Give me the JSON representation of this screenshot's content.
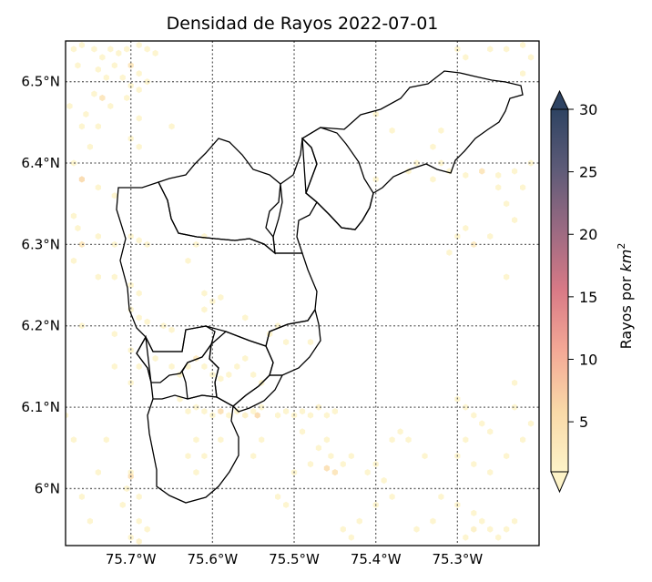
{
  "chart_data": {
    "type": "heatmap",
    "title": "Densidad de Rayos 2022-07-01",
    "xlim": [
      -75.78,
      -75.2
    ],
    "ylim": [
      5.93,
      6.55
    ],
    "x_ticks": [
      {
        "value": -75.7,
        "label": "75.7°W"
      },
      {
        "value": -75.6,
        "label": "75.6°W"
      },
      {
        "value": -75.5,
        "label": "75.5°W"
      },
      {
        "value": -75.4,
        "label": "75.4°W"
      },
      {
        "value": -75.3,
        "label": "75.3°W"
      }
    ],
    "y_ticks": [
      {
        "value": 6.0,
        "label": "6°N"
      },
      {
        "value": 6.1,
        "label": "6.1°N"
      },
      {
        "value": 6.2,
        "label": "6.2°N"
      },
      {
        "value": 6.3,
        "label": "6.3°N"
      },
      {
        "value": 6.4,
        "label": "6.4°N"
      },
      {
        "value": 6.5,
        "label": "6.5°N"
      }
    ],
    "grid": true,
    "colorbar": {
      "label_prefix": "Rayos por ",
      "label_math": "km",
      "label_sup": "2",
      "min": 1,
      "max": 30,
      "ticks": [
        5,
        10,
        15,
        20,
        25,
        30
      ],
      "tick_labels": [
        "5",
        "10",
        "15",
        "20",
        "25",
        "30"
      ],
      "extend": "both",
      "colors": [
        "#fdf3c8",
        "#f9d9a8",
        "#f4a996",
        "#d97a86",
        "#9b6a82",
        "#5e5b78",
        "#2e4362"
      ]
    },
    "cells": [
      [
        -75.77,
        6.54,
        1
      ],
      [
        -75.76,
        6.545,
        1
      ],
      [
        -75.745,
        6.54,
        1
      ],
      [
        -75.735,
        6.53,
        1
      ],
      [
        -75.725,
        6.54,
        1
      ],
      [
        -75.715,
        6.535,
        1
      ],
      [
        -75.705,
        6.54,
        1
      ],
      [
        -75.69,
        6.545,
        1
      ],
      [
        -75.68,
        6.54,
        1
      ],
      [
        -75.67,
        6.535,
        1
      ],
      [
        -75.765,
        6.52,
        1
      ],
      [
        -75.74,
        6.515,
        1
      ],
      [
        -75.72,
        6.52,
        1
      ],
      [
        -75.7,
        6.52,
        4
      ],
      [
        -75.69,
        6.51,
        1
      ],
      [
        -75.71,
        6.505,
        1
      ],
      [
        -75.73,
        6.505,
        1
      ],
      [
        -75.7,
        6.495,
        1
      ],
      [
        -75.69,
        6.49,
        1
      ],
      [
        -75.68,
        6.5,
        1
      ],
      [
        -75.735,
        6.48,
        4
      ],
      [
        -75.745,
        6.485,
        1
      ],
      [
        -75.725,
        6.47,
        1
      ],
      [
        -75.705,
        6.48,
        1
      ],
      [
        -75.775,
        6.47,
        1
      ],
      [
        -75.755,
        6.46,
        1
      ],
      [
        -75.76,
        6.445,
        1
      ],
      [
        -75.74,
        6.445,
        1
      ],
      [
        -75.69,
        6.455,
        1
      ],
      [
        -75.65,
        6.445,
        1
      ],
      [
        -75.7,
        6.43,
        1
      ],
      [
        -75.69,
        6.42,
        1
      ],
      [
        -75.75,
        6.42,
        1
      ],
      [
        -75.77,
        6.4,
        1
      ],
      [
        -75.76,
        6.38,
        6
      ],
      [
        -75.74,
        6.37,
        1
      ],
      [
        -75.72,
        6.36,
        1
      ],
      [
        -75.77,
        6.335,
        1
      ],
      [
        -75.765,
        6.32,
        1
      ],
      [
        -75.76,
        6.3,
        4
      ],
      [
        -75.74,
        6.31,
        1
      ],
      [
        -75.72,
        6.3,
        1
      ],
      [
        -75.7,
        6.31,
        1
      ],
      [
        -75.69,
        6.305,
        1
      ],
      [
        -75.68,
        6.3,
        1
      ],
      [
        -75.77,
        6.28,
        1
      ],
      [
        -75.74,
        6.26,
        1
      ],
      [
        -75.72,
        6.26,
        1
      ],
      [
        -75.7,
        6.25,
        1
      ],
      [
        -75.69,
        6.24,
        1
      ],
      [
        -75.7,
        6.22,
        1
      ],
      [
        -75.69,
        6.21,
        1
      ],
      [
        -75.68,
        6.205,
        1
      ],
      [
        -75.66,
        6.2,
        1
      ],
      [
        -75.65,
        6.195,
        1
      ],
      [
        -75.72,
        6.19,
        1
      ],
      [
        -75.76,
        6.2,
        1
      ],
      [
        -75.7,
        6.17,
        1
      ],
      [
        -75.69,
        6.15,
        1
      ],
      [
        -75.67,
        6.16,
        1
      ],
      [
        -75.65,
        6.15,
        1
      ],
      [
        -75.64,
        6.14,
        1
      ],
      [
        -75.63,
        6.15,
        1
      ],
      [
        -75.62,
        6.16,
        3
      ],
      [
        -75.61,
        6.15,
        1
      ],
      [
        -75.6,
        6.14,
        1
      ],
      [
        -75.59,
        6.135,
        1
      ],
      [
        -75.58,
        6.14,
        1
      ],
      [
        -75.57,
        6.15,
        1
      ],
      [
        -75.56,
        6.16,
        1
      ],
      [
        -75.55,
        6.14,
        1
      ],
      [
        -75.54,
        6.13,
        1
      ],
      [
        -75.72,
        6.15,
        1
      ],
      [
        -75.7,
        6.13,
        1
      ],
      [
        -75.64,
        6.11,
        1
      ],
      [
        -75.63,
        6.095,
        1
      ],
      [
        -75.62,
        6.1,
        1
      ],
      [
        -75.61,
        6.095,
        1
      ],
      [
        -75.6,
        6.09,
        1
      ],
      [
        -75.59,
        6.095,
        5
      ],
      [
        -75.58,
        6.09,
        1
      ],
      [
        -75.57,
        6.095,
        1
      ],
      [
        -75.56,
        6.09,
        2
      ],
      [
        -75.55,
        6.095,
        1
      ],
      [
        -75.545,
        6.09,
        6
      ],
      [
        -75.54,
        6.1,
        1
      ],
      [
        -75.52,
        6.09,
        1
      ],
      [
        -75.51,
        6.095,
        1
      ],
      [
        -75.5,
        6.09,
        1
      ],
      [
        -75.49,
        6.095,
        1
      ],
      [
        -75.48,
        6.09,
        1
      ],
      [
        -75.47,
        6.1,
        2
      ],
      [
        -75.46,
        6.09,
        1
      ],
      [
        -75.45,
        6.095,
        1
      ],
      [
        -75.46,
        6.06,
        1
      ],
      [
        -75.455,
        6.04,
        1
      ],
      [
        -75.46,
        6.025,
        5
      ],
      [
        -75.45,
        6.02,
        4
      ],
      [
        -75.44,
        6.03,
        1
      ],
      [
        -75.43,
        6.04,
        1
      ],
      [
        -75.41,
        6.02,
        1
      ],
      [
        -75.4,
        6.03,
        1
      ],
      [
        -75.39,
        6.01,
        1
      ],
      [
        -75.38,
        5.99,
        1
      ],
      [
        -75.4,
        5.98,
        1
      ],
      [
        -75.62,
        6.06,
        1
      ],
      [
        -75.63,
        6.04,
        1
      ],
      [
        -75.62,
        6.02,
        1
      ],
      [
        -75.61,
        6.04,
        1
      ],
      [
        -75.59,
        6.06,
        1
      ],
      [
        -75.7,
        6.02,
        1
      ],
      [
        -75.7,
        6.015,
        5
      ],
      [
        -75.705,
        6.0,
        1
      ],
      [
        -75.69,
        5.99,
        1
      ],
      [
        -75.71,
        5.98,
        1
      ],
      [
        -75.69,
        5.96,
        1
      ],
      [
        -75.68,
        5.95,
        1
      ],
      [
        -75.7,
        5.94,
        1
      ],
      [
        -75.69,
        5.935,
        2
      ],
      [
        -75.75,
        5.96,
        1
      ],
      [
        -75.76,
        5.99,
        1
      ],
      [
        -75.74,
        6.02,
        1
      ],
      [
        -75.73,
        6.06,
        1
      ],
      [
        -75.77,
        6.06,
        1
      ],
      [
        -75.78,
        6.09,
        1
      ],
      [
        -75.61,
        6.24,
        1
      ],
      [
        -75.6,
        6.23,
        1
      ],
      [
        -75.59,
        6.235,
        1
      ],
      [
        -75.61,
        6.22,
        1
      ],
      [
        -75.56,
        6.21,
        1
      ],
      [
        -75.62,
        6.3,
        1
      ],
      [
        -75.63,
        6.28,
        1
      ],
      [
        -75.61,
        6.31,
        1
      ],
      [
        -75.4,
        6.46,
        1
      ],
      [
        -75.38,
        6.44,
        1
      ],
      [
        -75.35,
        6.4,
        1
      ],
      [
        -75.33,
        6.38,
        1
      ],
      [
        -75.31,
        6.39,
        1
      ],
      [
        -75.29,
        6.385,
        1
      ],
      [
        -75.27,
        6.39,
        4
      ],
      [
        -75.25,
        6.385,
        1
      ],
      [
        -75.23,
        6.39,
        1
      ],
      [
        -75.21,
        6.4,
        1
      ],
      [
        -75.22,
        6.37,
        1
      ],
      [
        -75.24,
        6.35,
        1
      ],
      [
        -75.29,
        6.32,
        1
      ],
      [
        -75.3,
        6.31,
        1
      ],
      [
        -75.28,
        6.3,
        3
      ],
      [
        -75.26,
        6.31,
        1
      ],
      [
        -75.31,
        6.29,
        1
      ],
      [
        -75.3,
        6.54,
        1
      ],
      [
        -75.29,
        6.53,
        1
      ],
      [
        -75.26,
        6.54,
        1
      ],
      [
        -75.24,
        6.54,
        1
      ],
      [
        -75.22,
        6.545,
        1
      ],
      [
        -75.21,
        6.53,
        1
      ],
      [
        -75.22,
        6.51,
        1
      ],
      [
        -75.32,
        6.44,
        1
      ],
      [
        -75.33,
        6.42,
        1
      ],
      [
        -75.32,
        6.4,
        1
      ],
      [
        -75.3,
        6.11,
        1
      ],
      [
        -75.29,
        6.1,
        1
      ],
      [
        -75.28,
        6.09,
        1
      ],
      [
        -75.27,
        6.08,
        1
      ],
      [
        -75.26,
        6.07,
        1
      ],
      [
        -75.29,
        6.06,
        1
      ],
      [
        -75.3,
        6.04,
        1
      ],
      [
        -75.28,
        6.03,
        1
      ],
      [
        -75.26,
        6.02,
        1
      ],
      [
        -75.24,
        6.04,
        1
      ],
      [
        -75.32,
        5.99,
        1
      ],
      [
        -75.3,
        5.98,
        1
      ],
      [
        -75.28,
        5.97,
        1
      ],
      [
        -75.27,
        5.96,
        1
      ],
      [
        -75.26,
        5.95,
        1
      ],
      [
        -75.25,
        5.94,
        1
      ],
      [
        -75.24,
        5.95,
        1
      ],
      [
        -75.23,
        5.96,
        1
      ],
      [
        -75.28,
        5.95,
        2
      ],
      [
        -75.29,
        5.94,
        1
      ],
      [
        -75.35,
        5.95,
        1
      ],
      [
        -75.33,
        5.96,
        1
      ],
      [
        -75.34,
        6.04,
        1
      ],
      [
        -75.36,
        6.06,
        1
      ],
      [
        -75.37,
        6.07,
        1
      ],
      [
        -75.38,
        6.06,
        1
      ],
      [
        -75.5,
        6.02,
        1
      ],
      [
        -75.48,
        6.03,
        1
      ],
      [
        -75.47,
        6.05,
        1
      ],
      [
        -75.49,
        6.07,
        1
      ],
      [
        -75.54,
        6.06,
        1
      ],
      [
        -75.55,
        6.04,
        1
      ],
      [
        -75.52,
        5.99,
        1
      ],
      [
        -75.51,
        5.98,
        1
      ],
      [
        -75.44,
        5.95,
        1
      ],
      [
        -75.43,
        5.94,
        1
      ],
      [
        -75.42,
        5.96,
        1
      ],
      [
        -75.23,
        6.1,
        1
      ],
      [
        -75.21,
        6.08,
        1
      ],
      [
        -75.22,
        6.06,
        1
      ],
      [
        -75.23,
        6.13,
        1
      ],
      [
        -75.24,
        6.26,
        1
      ],
      [
        -75.23,
        6.33,
        1
      ],
      [
        -75.25,
        6.37,
        1
      ],
      [
        -75.4,
        6.38,
        1
      ],
      [
        -75.36,
        6.39,
        1
      ],
      [
        -75.52,
        6.2,
        1
      ],
      [
        -75.53,
        6.19,
        1
      ],
      [
        -75.51,
        6.18,
        1
      ],
      [
        -75.48,
        6.18,
        1
      ]
    ]
  }
}
